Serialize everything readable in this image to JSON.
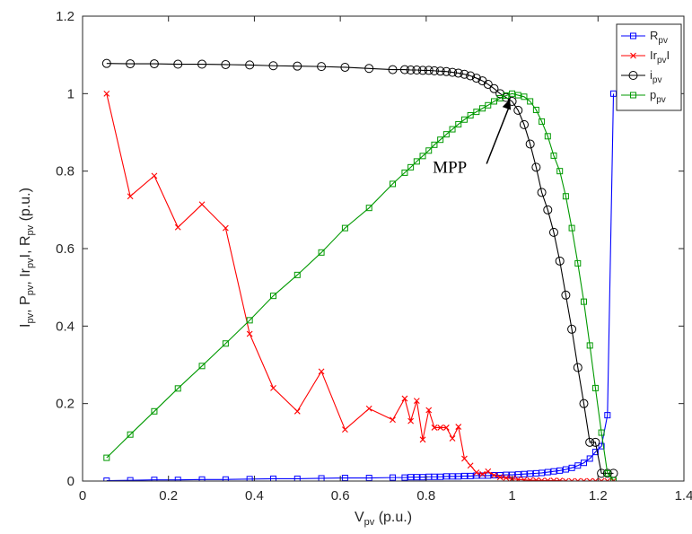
{
  "chart_data": {
    "type": "line",
    "xlabel": {
      "main": "V",
      "sub": "pv",
      "rest": " (p.u.)"
    },
    "ylabel": [
      {
        "main": "I",
        "sub": "pv"
      },
      {
        "main": ", P",
        "sub": "pv"
      },
      {
        "main": ", Ir",
        "sub": "pv"
      },
      {
        "main": "I, R",
        "sub": "pv"
      },
      {
        "main": "  (p.u.)",
        "sub": ""
      }
    ],
    "xlim": [
      0,
      1.4
    ],
    "ylim": [
      0,
      1.2
    ],
    "xticks": [
      "0",
      "0.2",
      "0.4",
      "0.6",
      "0.8",
      "1",
      "1.2",
      "1.4"
    ],
    "yticks": [
      "0",
      "0.2",
      "0.4",
      "0.6",
      "0.8",
      "1",
      "1.2"
    ],
    "grid": false,
    "legend_position": "top-right",
    "annotation": {
      "text": "MPP",
      "x": 0.995,
      "y": 0.995
    },
    "series": [
      {
        "name": "R",
        "sub": "pv",
        "color": "#0000ff",
        "marker": "square",
        "x": [
          0.056,
          0.111,
          0.167,
          0.222,
          0.278,
          0.333,
          0.389,
          0.444,
          0.5,
          0.556,
          0.611,
          0.667,
          0.722,
          0.75,
          0.764,
          0.778,
          0.792,
          0.806,
          0.819,
          0.833,
          0.847,
          0.861,
          0.875,
          0.889,
          0.903,
          0.917,
          0.931,
          0.944,
          0.958,
          0.972,
          0.986,
          1.0,
          1.014,
          1.028,
          1.042,
          1.056,
          1.069,
          1.083,
          1.097,
          1.111,
          1.125,
          1.139,
          1.153,
          1.167,
          1.181,
          1.194,
          1.208,
          1.222,
          1.236
        ],
        "y": [
          0.001,
          0.002,
          0.003,
          0.003,
          0.004,
          0.004,
          0.005,
          0.006,
          0.006,
          0.007,
          0.008,
          0.008,
          0.009,
          0.009,
          0.01,
          0.01,
          0.01,
          0.011,
          0.011,
          0.011,
          0.012,
          0.012,
          0.012,
          0.013,
          0.013,
          0.014,
          0.014,
          0.014,
          0.015,
          0.015,
          0.016,
          0.016,
          0.017,
          0.018,
          0.019,
          0.02,
          0.021,
          0.023,
          0.025,
          0.027,
          0.03,
          0.034,
          0.04,
          0.047,
          0.058,
          0.075,
          0.09,
          0.17,
          1.0
        ]
      },
      {
        "name": "Ir",
        "sub": "pv",
        "suffix": "I",
        "color": "#ff0000",
        "marker": "x",
        "x": [
          0.056,
          0.111,
          0.167,
          0.222,
          0.278,
          0.333,
          0.389,
          0.444,
          0.5,
          0.556,
          0.611,
          0.667,
          0.722,
          0.75,
          0.764,
          0.778,
          0.792,
          0.806,
          0.819,
          0.833,
          0.847,
          0.861,
          0.875,
          0.889,
          0.903,
          0.917,
          0.931,
          0.944,
          0.958,
          0.972,
          0.986,
          1.0,
          1.014,
          1.028,
          1.042,
          1.056,
          1.069,
          1.083,
          1.097,
          1.111,
          1.125,
          1.139,
          1.153,
          1.167,
          1.181,
          1.194,
          1.208,
          1.222,
          1.236
        ],
        "y": [
          1.0,
          0.735,
          0.788,
          0.655,
          0.714,
          0.653,
          0.38,
          0.24,
          0.18,
          0.283,
          0.133,
          0.187,
          0.158,
          0.213,
          0.155,
          0.207,
          0.107,
          0.183,
          0.138,
          0.138,
          0.138,
          0.11,
          0.14,
          0.058,
          0.04,
          0.022,
          0.018,
          0.025,
          0.015,
          0.01,
          0.008,
          0.006,
          0.004,
          0.003,
          0.002,
          0.002,
          0.001,
          0.001,
          0.001,
          0.001,
          0.0,
          0.0,
          0.0,
          0.0,
          0.0,
          0.0,
          0.0,
          0.0,
          0.0
        ]
      },
      {
        "name": "i",
        "sub": "pv",
        "color": "#000000",
        "marker": "circle",
        "x": [
          0.056,
          0.111,
          0.167,
          0.222,
          0.278,
          0.333,
          0.389,
          0.444,
          0.5,
          0.556,
          0.611,
          0.667,
          0.722,
          0.75,
          0.764,
          0.778,
          0.792,
          0.806,
          0.819,
          0.833,
          0.847,
          0.861,
          0.875,
          0.889,
          0.903,
          0.917,
          0.931,
          0.944,
          0.958,
          0.972,
          0.986,
          1.0,
          1.014,
          1.028,
          1.042,
          1.056,
          1.069,
          1.083,
          1.097,
          1.111,
          1.125,
          1.139,
          1.153,
          1.167,
          1.181,
          1.194,
          1.208,
          1.222,
          1.236
        ],
        "y": [
          1.078,
          1.077,
          1.077,
          1.076,
          1.076,
          1.075,
          1.074,
          1.072,
          1.071,
          1.07,
          1.068,
          1.065,
          1.062,
          1.062,
          1.061,
          1.061,
          1.06,
          1.06,
          1.059,
          1.058,
          1.057,
          1.055,
          1.053,
          1.05,
          1.046,
          1.04,
          1.033,
          1.024,
          1.013,
          1.0,
          0.99,
          0.98,
          0.957,
          0.92,
          0.87,
          0.81,
          0.745,
          0.7,
          0.642,
          0.568,
          0.48,
          0.392,
          0.293,
          0.2,
          0.1,
          0.1,
          0.02,
          0.02,
          0.02
        ]
      },
      {
        "name": "p",
        "sub": "pv",
        "color": "#009900",
        "marker": "square",
        "x": [
          0.056,
          0.111,
          0.167,
          0.222,
          0.278,
          0.333,
          0.389,
          0.444,
          0.5,
          0.556,
          0.611,
          0.667,
          0.722,
          0.75,
          0.764,
          0.778,
          0.792,
          0.806,
          0.819,
          0.833,
          0.847,
          0.861,
          0.875,
          0.889,
          0.903,
          0.917,
          0.931,
          0.944,
          0.958,
          0.972,
          0.986,
          1.0,
          1.014,
          1.028,
          1.042,
          1.056,
          1.069,
          1.083,
          1.097,
          1.111,
          1.125,
          1.139,
          1.153,
          1.167,
          1.181,
          1.194,
          1.208,
          1.222,
          1.236
        ],
        "y": [
          0.06,
          0.12,
          0.18,
          0.239,
          0.297,
          0.355,
          0.415,
          0.478,
          0.532,
          0.59,
          0.653,
          0.705,
          0.767,
          0.796,
          0.81,
          0.825,
          0.839,
          0.853,
          0.868,
          0.881,
          0.895,
          0.908,
          0.921,
          0.933,
          0.944,
          0.953,
          0.962,
          0.97,
          0.98,
          0.988,
          0.995,
          1.0,
          0.996,
          0.992,
          0.98,
          0.958,
          0.928,
          0.89,
          0.84,
          0.8,
          0.735,
          0.653,
          0.562,
          0.463,
          0.35,
          0.24,
          0.125,
          0.02,
          0.002
        ]
      }
    ]
  }
}
